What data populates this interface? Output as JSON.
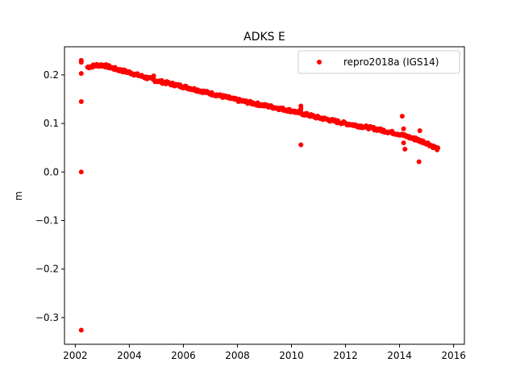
{
  "chart_data": {
    "type": "scatter",
    "title": "ADKS E",
    "xlabel": "",
    "ylabel": "m",
    "xlim": [
      2001.6,
      2016.4
    ],
    "ylim": [
      -0.355,
      0.258
    ],
    "x_ticks": [
      2002,
      2004,
      2006,
      2008,
      2010,
      2012,
      2014,
      2016
    ],
    "x_tick_labels": [
      "2002",
      "2004",
      "2006",
      "2008",
      "2010",
      "2012",
      "2014",
      "2016"
    ],
    "y_ticks": [
      -0.3,
      -0.2,
      -0.1,
      0.0,
      0.1,
      0.2
    ],
    "y_tick_labels": [
      "−0.3",
      "−0.2",
      "−0.1",
      "0.0",
      "0.1",
      "0.2"
    ],
    "grid": false,
    "legend_position": "top-right",
    "series": [
      {
        "name": "repro2018a (IGS14)",
        "color": "#ff0000",
        "marker": "circle",
        "trend_knots": [
          [
            2002.45,
            0.216
          ],
          [
            2002.8,
            0.22
          ],
          [
            2003.05,
            0.22
          ],
          [
            2003.5,
            0.212
          ],
          [
            2004.0,
            0.205
          ],
          [
            2005.0,
            0.188
          ],
          [
            2006.0,
            0.176
          ],
          [
            2007.0,
            0.162
          ],
          [
            2008.0,
            0.148
          ],
          [
            2009.0,
            0.137
          ],
          [
            2010.0,
            0.126
          ],
          [
            2011.0,
            0.112
          ],
          [
            2012.0,
            0.1
          ],
          [
            2013.0,
            0.09
          ],
          [
            2014.0,
            0.078
          ],
          [
            2015.0,
            0.06
          ],
          [
            2015.42,
            0.047
          ]
        ],
        "outliers": [
          [
            2002.22,
            0.23
          ],
          [
            2002.22,
            0.226
          ],
          [
            2002.22,
            0.203
          ],
          [
            2002.22,
            0.145
          ],
          [
            2002.22,
            0.0
          ],
          [
            2002.22,
            -0.326
          ],
          [
            2004.9,
            0.198
          ],
          [
            2010.35,
            0.136
          ],
          [
            2010.35,
            0.13
          ],
          [
            2010.35,
            0.056
          ],
          [
            2014.1,
            0.115
          ],
          [
            2014.15,
            0.089
          ],
          [
            2014.15,
            0.06
          ],
          [
            2014.2,
            0.047
          ],
          [
            2014.75,
            0.085
          ],
          [
            2014.72,
            0.021
          ],
          [
            2014.6,
            0.07
          ]
        ]
      }
    ]
  }
}
